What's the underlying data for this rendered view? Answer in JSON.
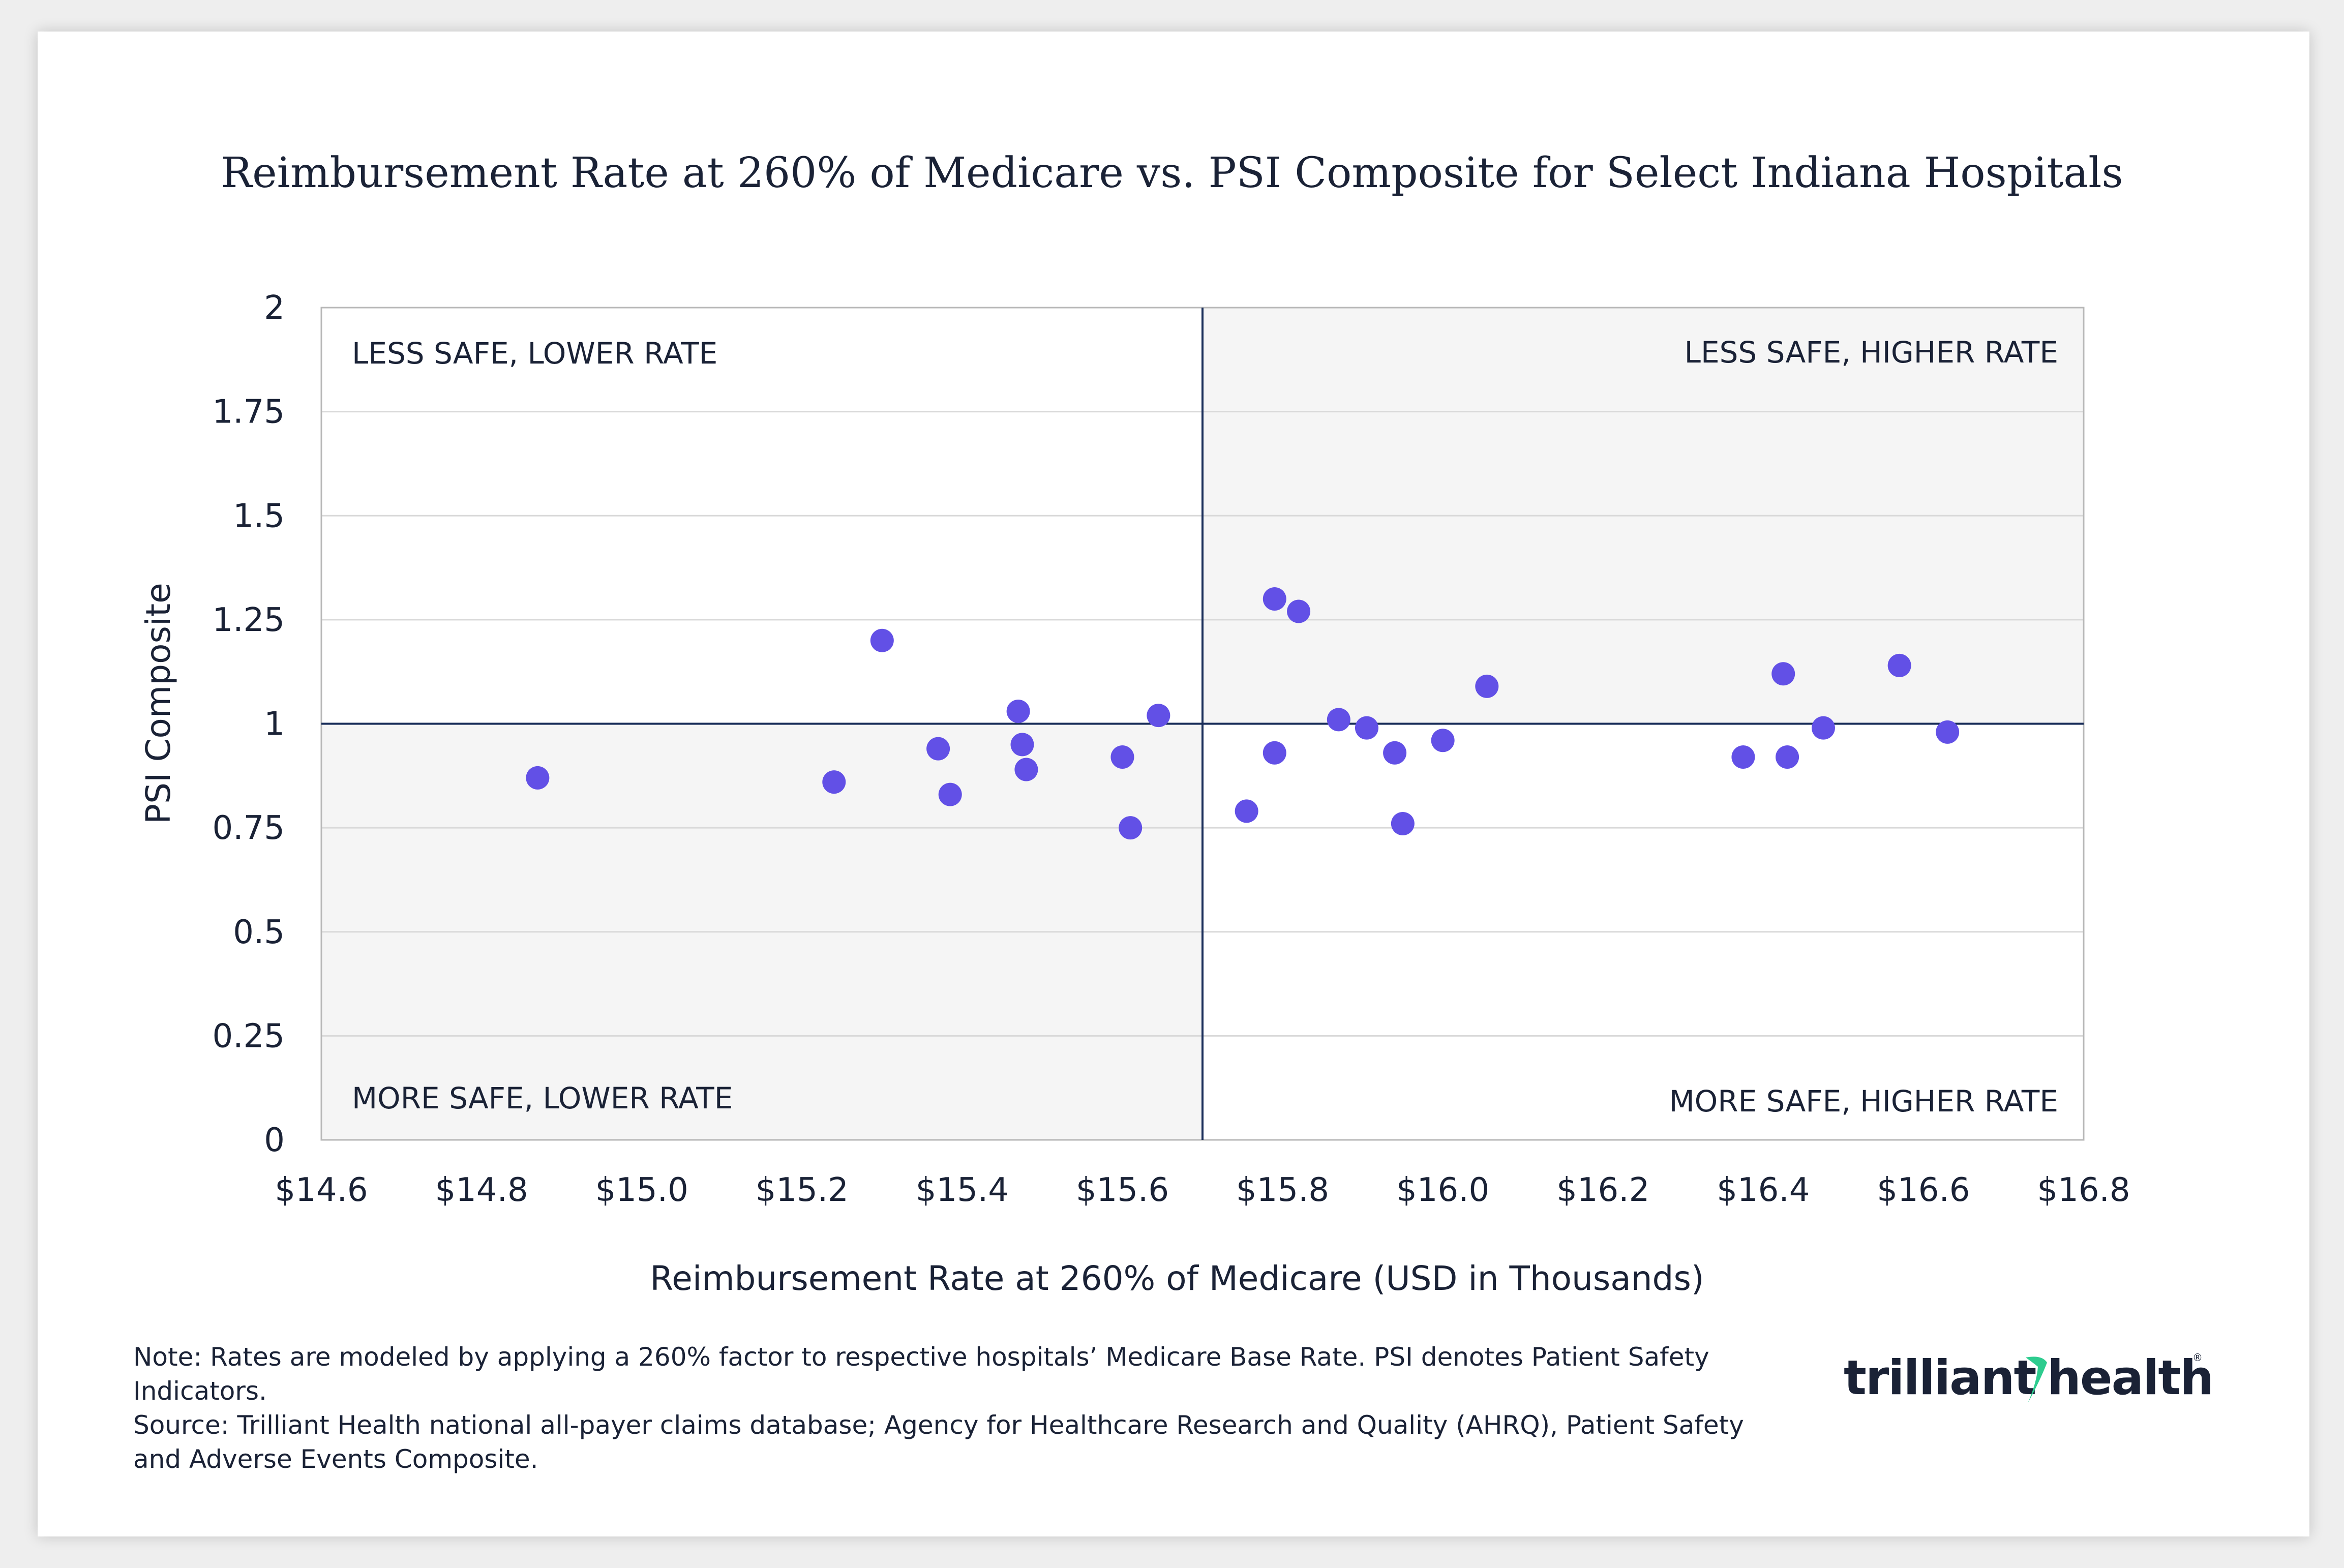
{
  "chart_data": {
    "type": "scatter",
    "title": "Reimbursement Rate at 260% of Medicare vs. PSI Composite for Select Indiana Hospitals",
    "xlabel": "Reimbursement Rate at 260% of Medicare (USD in Thousands)",
    "ylabel": "PSI Composite",
    "xlim": [
      14.6,
      16.8
    ],
    "ylim": [
      0,
      2
    ],
    "x_ticks": [
      14.6,
      14.8,
      15.0,
      15.2,
      15.4,
      15.6,
      15.8,
      16.0,
      16.2,
      16.4,
      16.6,
      16.8
    ],
    "x_tick_labels": [
      "$14.6",
      "$14.8",
      "$15.0",
      "$15.2",
      "$15.4",
      "$15.6",
      "$15.8",
      "$16.0",
      "$16.2",
      "$16.4",
      "$16.6",
      "$16.8"
    ],
    "y_ticks": [
      0,
      0.25,
      0.5,
      0.75,
      1,
      1.25,
      1.5,
      1.75,
      2
    ],
    "y_tick_labels": [
      "0",
      "0.25",
      "0.5",
      "0.75",
      "1",
      "1.25",
      "1.5",
      "1.75",
      "2"
    ],
    "grid": true,
    "reference_lines": {
      "x": 15.7,
      "y": 1
    },
    "quadrant_labels": {
      "top_left": "LESS SAFE, LOWER RATE",
      "top_right": "LESS SAFE, HIGHER RATE",
      "bottom_left": "MORE SAFE, LOWER RATE",
      "bottom_right": "MORE SAFE, HIGHER RATE"
    },
    "series": [
      {
        "name": "Indiana Hospitals",
        "color": "#6250e6",
        "points": [
          {
            "x": 14.87,
            "y": 0.87
          },
          {
            "x": 15.24,
            "y": 0.86
          },
          {
            "x": 15.3,
            "y": 1.2
          },
          {
            "x": 15.37,
            "y": 0.94
          },
          {
            "x": 15.385,
            "y": 0.83
          },
          {
            "x": 15.47,
            "y": 1.03
          },
          {
            "x": 15.475,
            "y": 0.95
          },
          {
            "x": 15.48,
            "y": 0.89
          },
          {
            "x": 15.6,
            "y": 0.92
          },
          {
            "x": 15.61,
            "y": 0.75
          },
          {
            "x": 15.645,
            "y": 1.02
          },
          {
            "x": 15.755,
            "y": 0.79
          },
          {
            "x": 15.79,
            "y": 1.3
          },
          {
            "x": 15.79,
            "y": 0.93
          },
          {
            "x": 15.82,
            "y": 1.27
          },
          {
            "x": 15.87,
            "y": 1.01
          },
          {
            "x": 15.905,
            "y": 0.99
          },
          {
            "x": 15.94,
            "y": 0.93
          },
          {
            "x": 15.95,
            "y": 0.76
          },
          {
            "x": 16.0,
            "y": 0.96
          },
          {
            "x": 16.055,
            "y": 1.09
          },
          {
            "x": 16.375,
            "y": 0.92
          },
          {
            "x": 16.425,
            "y": 1.12
          },
          {
            "x": 16.43,
            "y": 0.92
          },
          {
            "x": 16.475,
            "y": 0.99
          },
          {
            "x": 16.57,
            "y": 1.14
          },
          {
            "x": 16.63,
            "y": 0.98
          }
        ]
      }
    ]
  },
  "footnote": {
    "note": "Note: Rates are modeled by applying a 260% factor to respective hospitals’ Medicare Base Rate. PSI denotes Patient Safety Indicators.",
    "source": "Source: Trilliant Health national all-payer claims database; Agency for Healthcare Research and Quality (AHRQ), Patient Safety and Adverse Events Composite."
  },
  "logo": {
    "part1": "trilliant",
    "part2": "health",
    "registered": "®",
    "accent_color": "#2ecc8f",
    "text_color": "#1a2236"
  },
  "colors": {
    "axis_line": "#1a2e5a",
    "grid": "#d9d9d9",
    "shade": "#f5f5f5",
    "text": "#1a2236"
  }
}
